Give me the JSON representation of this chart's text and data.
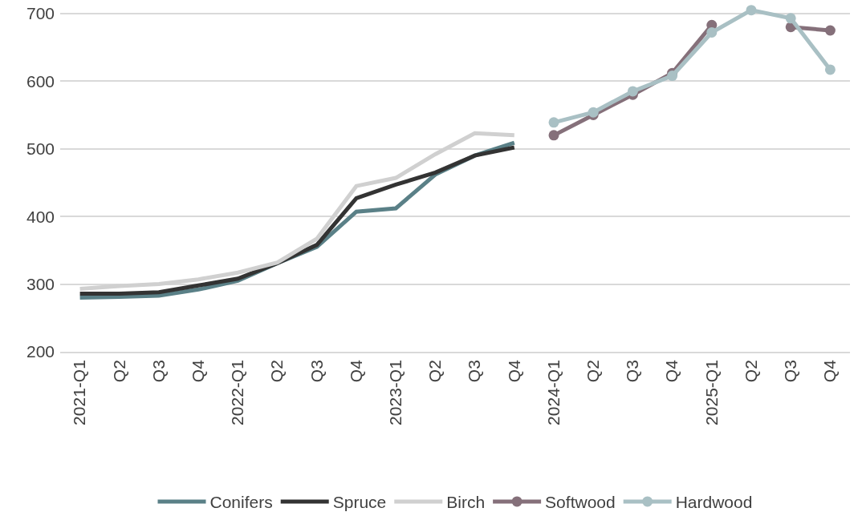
{
  "chart_data": {
    "type": "line",
    "categories": [
      "2021-Q1",
      "Q2",
      "Q3",
      "Q4",
      "2022-Q1",
      "Q2",
      "Q3",
      "Q4",
      "2023-Q1",
      "Q2",
      "Q3",
      "Q4",
      "2024-Q1",
      "Q2",
      "Q3",
      "Q4",
      "2025-Q1",
      "Q2",
      "Q3",
      "Q4"
    ],
    "series": [
      {
        "name": "Conifers",
        "color": "#5a8087",
        "marker": "none",
        "values": [
          280,
          281,
          283,
          292,
          305,
          331,
          355,
          407,
          412,
          462,
          490,
          509,
          null,
          null,
          null,
          null,
          null,
          null,
          null,
          null
        ]
      },
      {
        "name": "Spruce",
        "color": "#333333",
        "marker": "none",
        "values": [
          286,
          286,
          288,
          298,
          308,
          331,
          358,
          427,
          447,
          465,
          490,
          502,
          null,
          null,
          null,
          null,
          null,
          null,
          null,
          null
        ]
      },
      {
        "name": "Birch",
        "color": "#d0d0d0",
        "marker": "none",
        "values": [
          293,
          297,
          300,
          307,
          317,
          332,
          367,
          445,
          457,
          492,
          523,
          520,
          null,
          null,
          null,
          null,
          null,
          null,
          null,
          null
        ]
      },
      {
        "name": "Softwood",
        "color": "#85707a",
        "marker": "circle",
        "values": [
          null,
          null,
          null,
          null,
          null,
          null,
          null,
          null,
          null,
          null,
          null,
          null,
          520,
          550,
          580,
          612,
          683,
          null,
          680,
          675
        ]
      },
      {
        "name": "Hardwood",
        "color": "#a9c0c4",
        "marker": "circle",
        "values": [
          null,
          null,
          null,
          null,
          null,
          null,
          null,
          null,
          null,
          null,
          null,
          null,
          539,
          554,
          585,
          608,
          672,
          705,
          693,
          617
        ]
      }
    ],
    "ylim": [
      200,
      720
    ],
    "yticks": [
      200,
      300,
      400,
      500,
      600,
      700
    ],
    "grid": "y",
    "legend": "bottom",
    "line_style": "solid"
  }
}
